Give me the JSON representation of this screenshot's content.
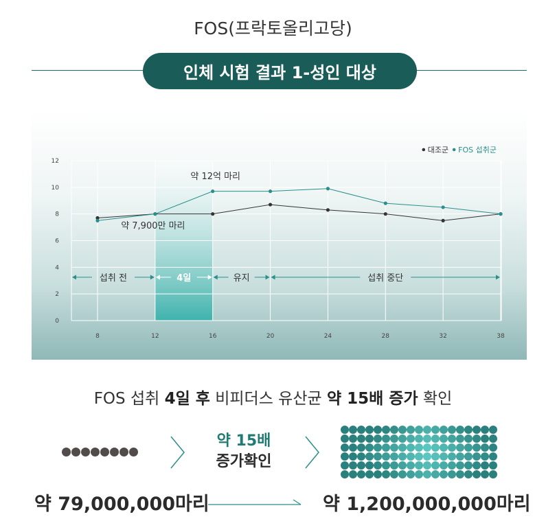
{
  "title": "FOS(프락토올리고당)",
  "banner": "인체 시험 결과 1-성인 대상",
  "chart_data": {
    "type": "line",
    "x": [
      8,
      12,
      16,
      20,
      24,
      28,
      32,
      38
    ],
    "x_ticks": [
      "8",
      "12",
      "16",
      "20",
      "24",
      "28",
      "32",
      "38"
    ],
    "y_ticks": [
      "0",
      "2",
      "4",
      "6",
      "8",
      "10",
      "12"
    ],
    "ylim": [
      0,
      12
    ],
    "grid": true,
    "legend_position": "top-right",
    "series": [
      {
        "name": "대조군",
        "color": "#333333",
        "values": [
          7.7,
          8.0,
          8.0,
          8.7,
          8.3,
          8.0,
          7.5,
          8.0
        ]
      },
      {
        "name": "FOS 섭취군",
        "color": "#2a8f8b",
        "values": [
          7.5,
          8.0,
          9.7,
          9.7,
          9.9,
          8.8,
          8.5,
          8.0
        ]
      }
    ],
    "annotations": [
      {
        "text": "약 12억 마리",
        "x": 16,
        "y": 10.6
      },
      {
        "text": "약 7,900만 마리",
        "x": 12,
        "y": 6.9
      }
    ],
    "highlight_range": [
      12,
      16
    ],
    "phases": [
      {
        "label": "섭취 전",
        "from": 8,
        "to": 12
      },
      {
        "label": "4일",
        "from": 12,
        "to": 16
      },
      {
        "label": "유지",
        "from": 16,
        "to": 20
      },
      {
        "label": "섭취 중단",
        "from": 20,
        "to": 38
      }
    ]
  },
  "summary": {
    "prefix": "FOS 섭취 ",
    "days": "4일 후",
    "middle": " 비피더스 유산균 ",
    "multiple": "약 15배 증가",
    "suffix": " 확인"
  },
  "center_label": {
    "line1": "약 15배",
    "line2": "증가확인"
  },
  "before_count": "약 79,000,000마리",
  "after_count": "약 1,200,000,000마리",
  "colors": {
    "accent": "#1a5c57",
    "teal": "#2a8f8b",
    "dark_dot": "#514c4a"
  }
}
